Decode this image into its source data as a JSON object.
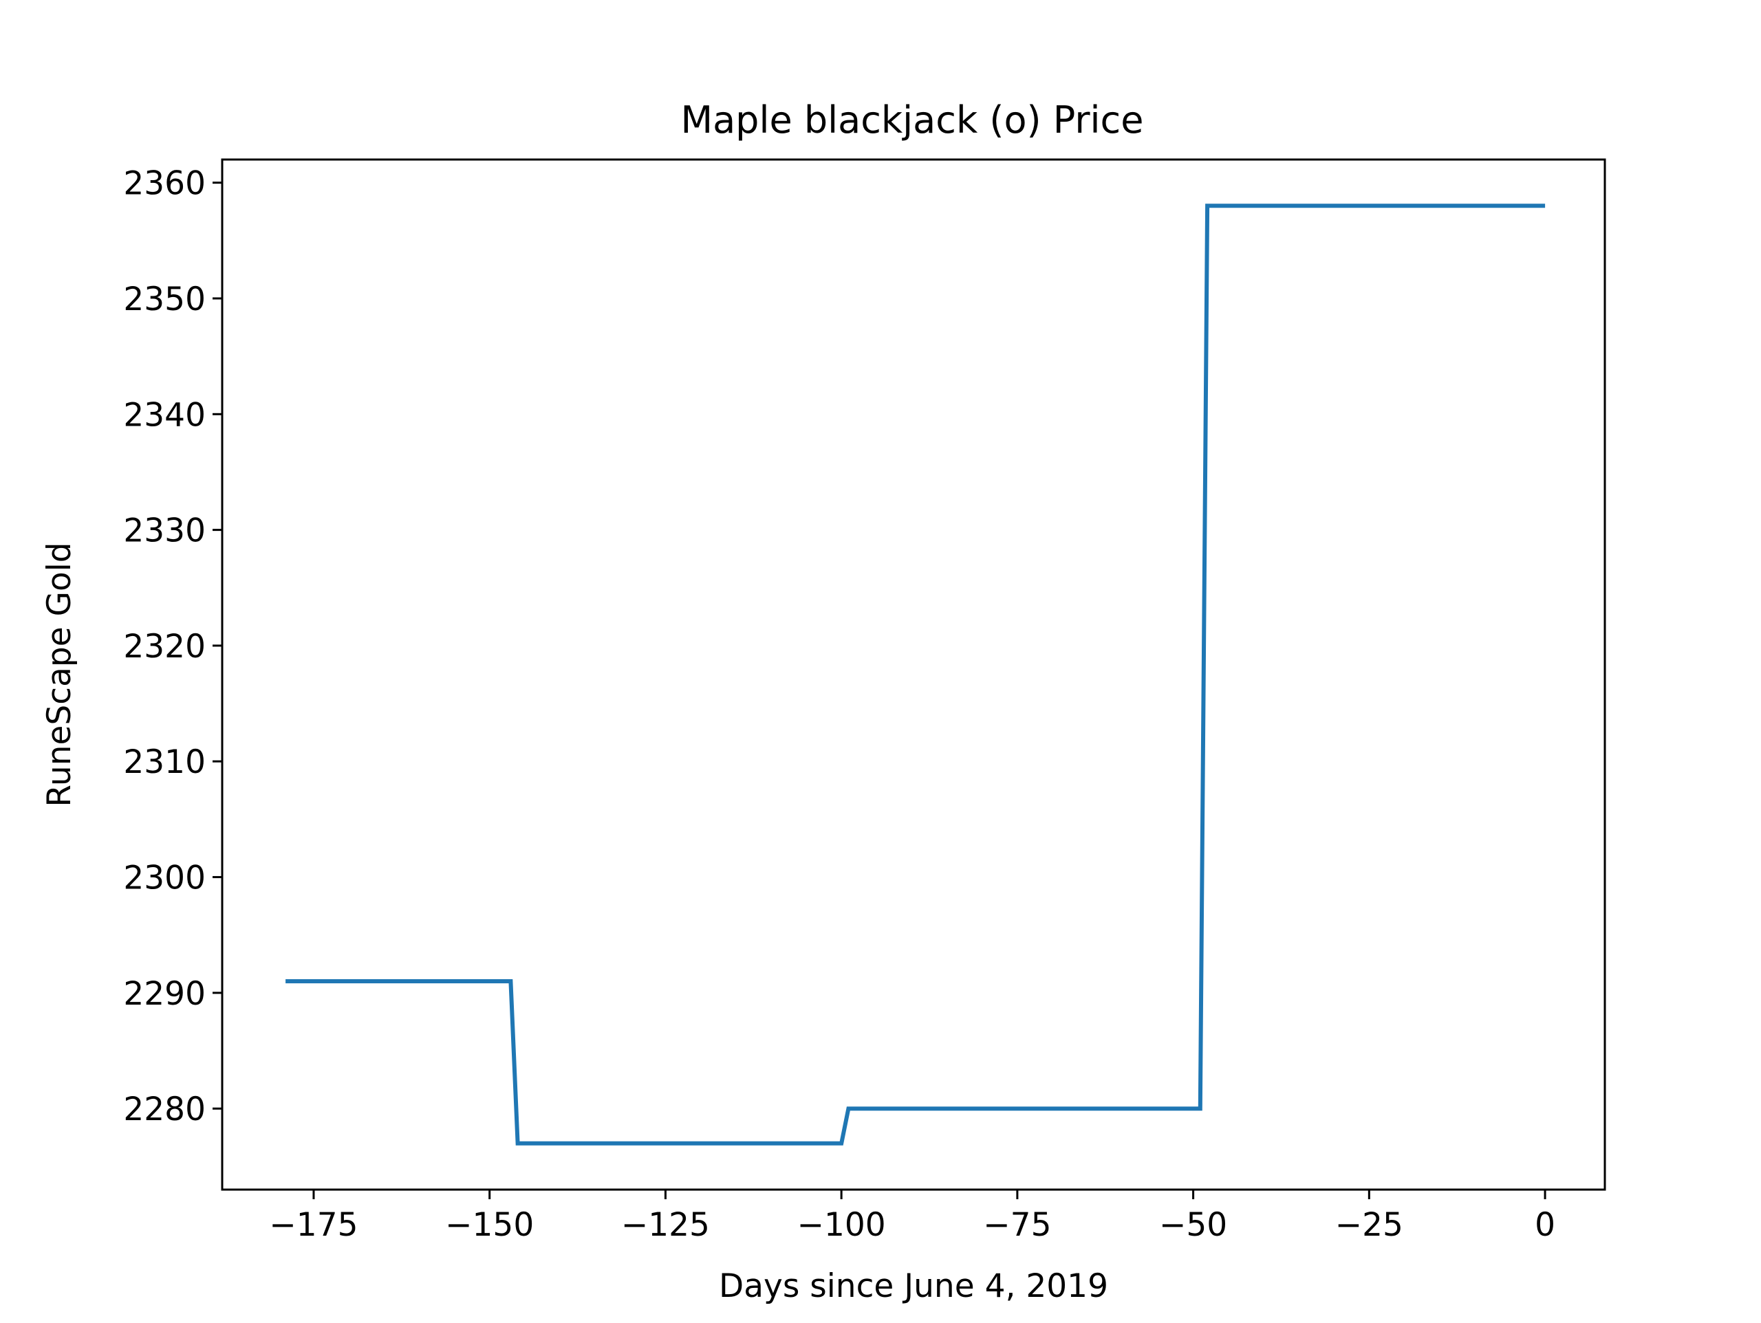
{
  "chart_data": {
    "type": "line",
    "title": "Maple blackjack (o) Price",
    "xlabel": "Days since June 4, 2019",
    "ylabel": "RuneScape Gold",
    "xlim": [
      -188,
      8.5
    ],
    "ylim": [
      2273,
      2362
    ],
    "x_ticks": [
      -175,
      -150,
      -125,
      -100,
      -75,
      -50,
      -25,
      0
    ],
    "x_tick_labels": [
      "−175",
      "−150",
      "−125",
      "−100",
      "−75",
      "−50",
      "−25",
      "0"
    ],
    "y_ticks": [
      2280,
      2290,
      2300,
      2310,
      2320,
      2330,
      2340,
      2350,
      2360
    ],
    "y_tick_labels": [
      "2280",
      "2290",
      "2300",
      "2310",
      "2320",
      "2330",
      "2340",
      "2350",
      "2360"
    ],
    "grid": false,
    "series": [
      {
        "color": "#1f77b4",
        "x": [
          -179,
          -147,
          -146,
          -100,
          -99,
          -49,
          -48,
          0
        ],
        "y": [
          2291,
          2291,
          2277,
          2277,
          2280,
          2280,
          2358,
          2358
        ]
      }
    ]
  }
}
